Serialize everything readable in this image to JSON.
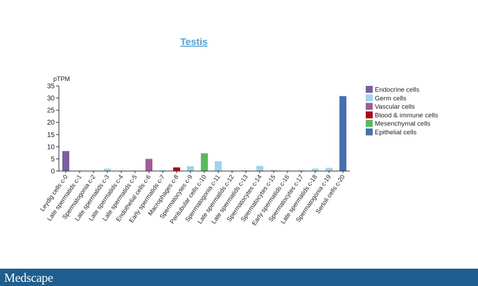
{
  "brand": {
    "logo": "Medscape",
    "bar_color": "#1d5e8f"
  },
  "chart_data": {
    "type": "bar",
    "title": "Testis",
    "title_color": "#4aa3d8",
    "ylabel": "pTPM",
    "xlabel": "",
    "ylim": [
      0,
      35
    ],
    "yticks": [
      0,
      5,
      10,
      15,
      20,
      25,
      30,
      35
    ],
    "grid": false,
    "legend_position": "right",
    "categories": [
      "Leydig cells c-0",
      "Late spermatids c-1",
      "Spermatogonia c-2",
      "Late spermatids c-3",
      "Late spermatids c-4",
      "Late spermatids c-5",
      "Endothelial cells c-6",
      "Early spermatids c-7",
      "Macrophages c-8",
      "Spermatocytes c-9",
      "Peritubular cells c-10",
      "Spermatogonia c-11",
      "Late spermatids c-12",
      "Late spermatids c-13",
      "Spermatocytes c-14",
      "Spermatocytes c-15",
      "Early spermatids c-16",
      "Spermatocytes c-17",
      "Late spermatids c-18",
      "Spermatogonia c-19",
      "Sertoli cells c-20"
    ],
    "values": [
      8.2,
      0.2,
      0.2,
      1.0,
      0.2,
      0.2,
      5.0,
      0.3,
      1.5,
      2.0,
      7.3,
      4.0,
      0.2,
      0.3,
      2.1,
      0.4,
      0.2,
      0.3,
      1.0,
      1.3,
      30.8
    ],
    "groups": [
      "Endocrine cells",
      "Germ cells",
      "Germ cells",
      "Germ cells",
      "Germ cells",
      "Germ cells",
      "Vascular cells",
      "Germ cells",
      "Blood & immune cells",
      "Germ cells",
      "Mesenchymal cells",
      "Germ cells",
      "Germ cells",
      "Germ cells",
      "Germ cells",
      "Germ cells",
      "Germ cells",
      "Germ cells",
      "Germ cells",
      "Germ cells",
      "Epithelial cells"
    ],
    "legend": [
      {
        "name": "Endocrine cells",
        "color": "#7b5fa0"
      },
      {
        "name": "Germ cells",
        "color": "#9fd4ef"
      },
      {
        "name": "Vascular cells",
        "color": "#a65a93"
      },
      {
        "name": "Blood & immune cells",
        "color": "#b3001a"
      },
      {
        "name": "Mesenchymal cells",
        "color": "#5cb85c"
      },
      {
        "name": "Epithelial cells",
        "color": "#4670b0"
      }
    ]
  }
}
